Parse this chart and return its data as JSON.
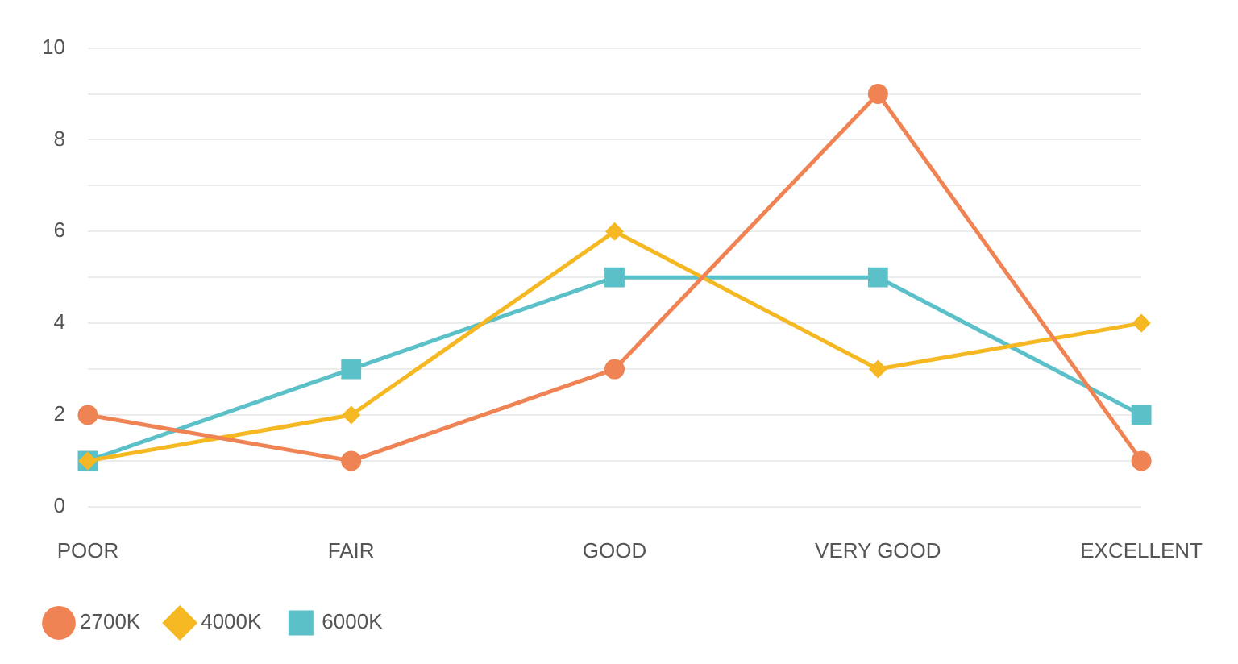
{
  "chart_data": {
    "type": "line",
    "categories": [
      "POOR",
      "FAIR",
      "GOOD",
      "VERY GOOD",
      "EXCELLENT"
    ],
    "series": [
      {
        "name": "2700K",
        "color": "#ef8354",
        "marker": "circle",
        "values": [
          2,
          1,
          3,
          9,
          1
        ]
      },
      {
        "name": "4000K",
        "color": "#f5b823",
        "marker": "diamond",
        "values": [
          1,
          2,
          6,
          3,
          4
        ]
      },
      {
        "name": "6000K",
        "color": "#5bc0c8",
        "marker": "square",
        "values": [
          1,
          3,
          5,
          5,
          2
        ]
      }
    ],
    "ylim": [
      0,
      10
    ],
    "yticks": [
      0,
      {
        "value": 1,
        "label": null
      },
      2,
      {
        "value": 3,
        "label": null
      },
      4,
      {
        "value": 5,
        "label": null
      },
      6,
      {
        "value": 7,
        "label": null
      },
      8,
      {
        "value": 9,
        "label": null
      },
      10
    ],
    "grid": "y",
    "legend": "bottom left",
    "line_style": "solid"
  }
}
